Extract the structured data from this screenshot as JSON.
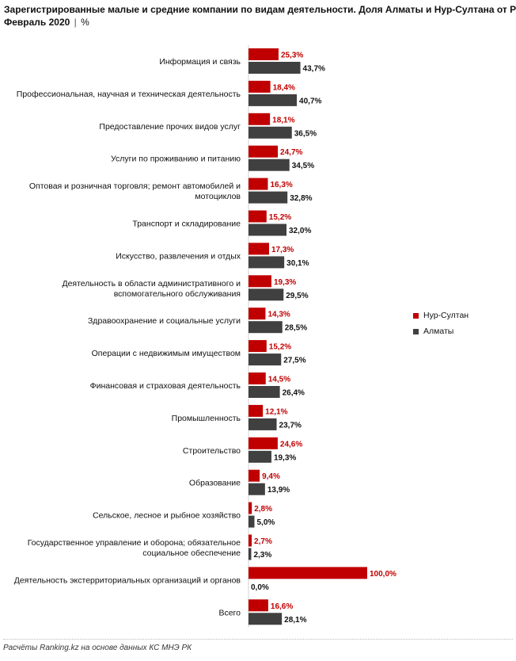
{
  "title": {
    "line1": "Зарегистрированные  малые и средние компании по видам деятельности. Доля Алматы и Нур-Султана  от РК.",
    "line2_main": "Февраль  2020",
    "line2_sep": "|",
    "line2_unit": "%"
  },
  "footer": "Расчёты Ranking.kz на основе данных  КС МНЭ РК",
  "chart_data": {
    "type": "bar",
    "orientation": "horizontal",
    "categories": [
      [
        "Информация и связь"
      ],
      [
        "Профессиональная, научная и техническая деятельность"
      ],
      [
        "Предоставление прочих видов услуг"
      ],
      [
        "Услуги по проживанию и питанию"
      ],
      [
        "Оптовая и розничная торговля; ремонт автомобилей и",
        "мотоциклов"
      ],
      [
        "Транспорт и складирование"
      ],
      [
        "Искусство, развлечения и отдых"
      ],
      [
        "Деятельность в области административного и",
        "вспомогательного обслуживания"
      ],
      [
        "Здравоохранение и социальные услуги"
      ],
      [
        "Операции с недвижимым имуществом"
      ],
      [
        "Финансовая и страховая деятельность"
      ],
      [
        "Промышленность"
      ],
      [
        "Строительство"
      ],
      [
        "Образование"
      ],
      [
        "Сельское, лесное и рыбное хозяйство"
      ],
      [
        "Государственное управление и оборона; обязательное",
        "социальное обеспечение"
      ],
      [
        "Деятельность экстерриториальных организаций и органов"
      ],
      [
        "Всего"
      ]
    ],
    "series": [
      {
        "name": "Нур-Султан",
        "color": "#c00000",
        "values": [
          25.3,
          18.4,
          18.1,
          24.7,
          16.3,
          15.2,
          17.3,
          19.3,
          14.3,
          15.2,
          14.5,
          12.1,
          24.6,
          9.4,
          2.8,
          2.7,
          100.0,
          16.6
        ],
        "labels": [
          "25,3%",
          "18,4%",
          "18,1%",
          "24,7%",
          "16,3%",
          "15,2%",
          "17,3%",
          "19,3%",
          "14,3%",
          "15,2%",
          "14,5%",
          "12,1%",
          "24,6%",
          "9,4%",
          "2,8%",
          "2,7%",
          "100,0%",
          "16,6%"
        ]
      },
      {
        "name": "Алматы",
        "color": "#404040",
        "values": [
          43.7,
          40.7,
          36.5,
          34.5,
          32.8,
          32.0,
          30.1,
          29.5,
          28.5,
          27.5,
          26.4,
          23.7,
          19.3,
          13.9,
          5.0,
          2.3,
          0.0,
          28.1
        ],
        "labels": [
          "43,7%",
          "40,7%",
          "36,5%",
          "34,5%",
          "32,8%",
          "32,0%",
          "30,1%",
          "29,5%",
          "28,5%",
          "27,5%",
          "26,4%",
          "23,7%",
          "19,3%",
          "13,9%",
          "5,0%",
          "2,3%",
          "0,0%",
          "28,1%"
        ]
      }
    ],
    "xlim": [
      0,
      100
    ],
    "grid": false,
    "legend_position": "right"
  }
}
